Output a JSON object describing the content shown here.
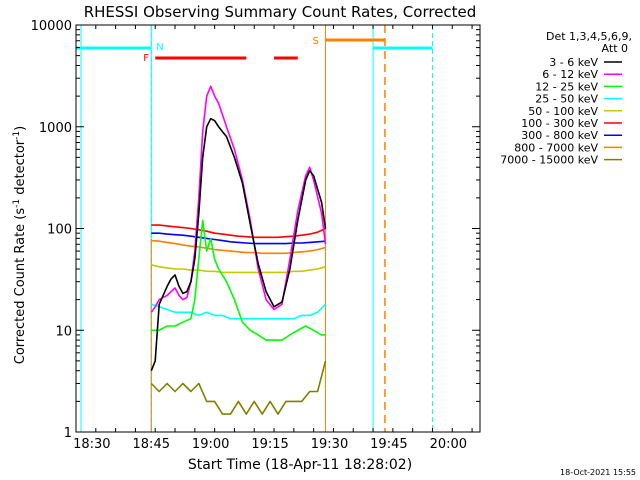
{
  "chart_data": {
    "type": "line",
    "title": "RHESSI Observing Summary Count Rates, Corrected",
    "xlabel": "Start Time (18-Apr-11 18:28:02)",
    "ylabel": "Corrected Count Rate (s⁻¹ detector⁻¹)",
    "ylabel_main": "Corrected Count Rate (s",
    "ylabel_sup1": "-1",
    "ylabel_mid": " detector",
    "ylabel_sup2": "-1",
    "ylabel_end": ")",
    "yscale": "log",
    "xlim": [
      "18:26",
      "20:08"
    ],
    "ylim": [
      1,
      10000
    ],
    "x_ticks": [
      "18:30",
      "18:45",
      "19:00",
      "19:15",
      "19:30",
      "19:45",
      "20:00"
    ],
    "y_ticks": [
      "1",
      "10",
      "100",
      "1000",
      "10000"
    ],
    "legend_header": [
      "Det 1,3,4,5,6,9,",
      "Att 0"
    ],
    "legend_position": "right",
    "timestamp": "18-Oct-2021 15:55",
    "flags": [
      {
        "label": "N",
        "color": "#00ffff",
        "kind": "night",
        "x": "18:45"
      },
      {
        "label": "F",
        "color": "#ff0000",
        "kind": "flare"
      },
      {
        "label": "S",
        "color": "#ff7f00",
        "kind": "saa"
      }
    ],
    "series": [
      {
        "name": "3 - 6 keV",
        "color": "#000000",
        "points": [
          [
            "18:45",
            4
          ],
          [
            "18:46",
            5
          ],
          [
            "18:47",
            18
          ],
          [
            "18:49",
            27
          ],
          [
            "18:50",
            32
          ],
          [
            "18:51",
            35
          ],
          [
            "18:52",
            27
          ],
          [
            "18:53",
            23
          ],
          [
            "18:54",
            24
          ],
          [
            "18:55",
            30
          ],
          [
            "18:56",
            50
          ],
          [
            "18:57",
            140
          ],
          [
            "18:58",
            500
          ],
          [
            "18:59",
            1000
          ],
          [
            "19:00",
            1200
          ],
          [
            "19:01",
            1150
          ],
          [
            "19:02",
            1000
          ],
          [
            "19:04",
            800
          ],
          [
            "19:06",
            500
          ],
          [
            "19:08",
            280
          ],
          [
            "19:10",
            110
          ],
          [
            "19:12",
            45
          ],
          [
            "19:14",
            24
          ],
          [
            "19:16",
            17
          ],
          [
            "19:18",
            19
          ],
          [
            "19:20",
            40
          ],
          [
            "19:22",
            120
          ],
          [
            "19:24",
            300
          ],
          [
            "19:25",
            370
          ],
          [
            "19:26",
            330
          ],
          [
            "19:28",
            180
          ],
          [
            "19:29",
            100
          ]
        ]
      },
      {
        "name": "6 - 12 keV",
        "color": "#ff00ff",
        "points": [
          [
            "18:45",
            15
          ],
          [
            "18:46",
            17
          ],
          [
            "18:47",
            20
          ],
          [
            "18:49",
            22
          ],
          [
            "18:50",
            24
          ],
          [
            "18:51",
            26
          ],
          [
            "18:52",
            22
          ],
          [
            "18:53",
            20
          ],
          [
            "18:54",
            21
          ],
          [
            "18:55",
            30
          ],
          [
            "18:56",
            60
          ],
          [
            "18:57",
            200
          ],
          [
            "18:58",
            900
          ],
          [
            "18:59",
            2000
          ],
          [
            "19:00",
            2500
          ],
          [
            "19:01",
            2000
          ],
          [
            "19:02",
            1700
          ],
          [
            "19:04",
            1000
          ],
          [
            "19:06",
            600
          ],
          [
            "19:08",
            300
          ],
          [
            "19:10",
            120
          ],
          [
            "19:12",
            40
          ],
          [
            "19:14",
            20
          ],
          [
            "19:16",
            16
          ],
          [
            "19:18",
            18
          ],
          [
            "19:20",
            50
          ],
          [
            "19:22",
            150
          ],
          [
            "19:24",
            330
          ],
          [
            "19:25",
            400
          ],
          [
            "19:26",
            300
          ],
          [
            "19:28",
            140
          ],
          [
            "19:29",
            70
          ]
        ]
      },
      {
        "name": "12 - 25 keV",
        "color": "#00ff00",
        "points": [
          [
            "18:45",
            10
          ],
          [
            "18:47",
            10
          ],
          [
            "18:49",
            11
          ],
          [
            "18:51",
            11
          ],
          [
            "18:53",
            12
          ],
          [
            "18:55",
            13
          ],
          [
            "18:56",
            20
          ],
          [
            "18:57",
            50
          ],
          [
            "18:58",
            120
          ],
          [
            "18:59",
            60
          ],
          [
            "19:00",
            80
          ],
          [
            "19:01",
            50
          ],
          [
            "19:02",
            40
          ],
          [
            "19:04",
            30
          ],
          [
            "19:06",
            20
          ],
          [
            "19:08",
            12
          ],
          [
            "19:10",
            10
          ],
          [
            "19:12",
            9
          ],
          [
            "19:14",
            8
          ],
          [
            "19:16",
            8
          ],
          [
            "19:18",
            8
          ],
          [
            "19:20",
            9
          ],
          [
            "19:22",
            10
          ],
          [
            "19:24",
            11
          ],
          [
            "19:26",
            10
          ],
          [
            "19:28",
            9
          ],
          [
            "19:29",
            9
          ]
        ]
      },
      {
        "name": "25 - 50 keV",
        "color": "#00ffff",
        "points": [
          [
            "18:45",
            18
          ],
          [
            "18:47",
            17
          ],
          [
            "18:49",
            16
          ],
          [
            "18:51",
            15
          ],
          [
            "18:53",
            15
          ],
          [
            "18:55",
            15
          ],
          [
            "18:57",
            14
          ],
          [
            "18:59",
            15
          ],
          [
            "19:01",
            14
          ],
          [
            "19:03",
            14
          ],
          [
            "19:05",
            13
          ],
          [
            "19:07",
            13
          ],
          [
            "19:09",
            13
          ],
          [
            "19:11",
            13
          ],
          [
            "19:13",
            13
          ],
          [
            "19:15",
            13
          ],
          [
            "19:17",
            13
          ],
          [
            "19:19",
            13
          ],
          [
            "19:21",
            13
          ],
          [
            "19:23",
            14
          ],
          [
            "19:25",
            14
          ],
          [
            "19:27",
            15
          ],
          [
            "19:29",
            18
          ]
        ]
      },
      {
        "name": "50 - 100 keV",
        "color": "#c8c800",
        "points": [
          [
            "18:45",
            44
          ],
          [
            "18:47",
            42
          ],
          [
            "18:49",
            41
          ],
          [
            "18:51",
            40
          ],
          [
            "18:53",
            40
          ],
          [
            "18:55",
            39
          ],
          [
            "18:57",
            39
          ],
          [
            "18:59",
            38
          ],
          [
            "19:01",
            38
          ],
          [
            "19:03",
            37
          ],
          [
            "19:05",
            37
          ],
          [
            "19:07",
            37
          ],
          [
            "19:09",
            37
          ],
          [
            "19:11",
            37
          ],
          [
            "19:13",
            37
          ],
          [
            "19:15",
            37
          ],
          [
            "19:17",
            37
          ],
          [
            "19:19",
            37
          ],
          [
            "19:21",
            38
          ],
          [
            "19:23",
            38
          ],
          [
            "19:25",
            39
          ],
          [
            "19:27",
            40
          ],
          [
            "19:29",
            42
          ]
        ]
      },
      {
        "name": "100 - 300 keV",
        "color": "#ff0000",
        "points": [
          [
            "18:45",
            108
          ],
          [
            "18:47",
            108
          ],
          [
            "18:49",
            106
          ],
          [
            "18:51",
            104
          ],
          [
            "18:53",
            102
          ],
          [
            "18:55",
            100
          ],
          [
            "18:57",
            97
          ],
          [
            "18:59",
            94
          ],
          [
            "19:01",
            90
          ],
          [
            "19:03",
            88
          ],
          [
            "19:05",
            86
          ],
          [
            "19:07",
            84
          ],
          [
            "19:09",
            83
          ],
          [
            "19:11",
            82
          ],
          [
            "19:13",
            82
          ],
          [
            "19:15",
            82
          ],
          [
            "19:17",
            82
          ],
          [
            "19:19",
            83
          ],
          [
            "19:21",
            84
          ],
          [
            "19:23",
            86
          ],
          [
            "19:25",
            88
          ],
          [
            "19:27",
            92
          ],
          [
            "19:29",
            100
          ]
        ]
      },
      {
        "name": "300 - 800 keV",
        "color": "#0000ff",
        "points": [
          [
            "18:45",
            90
          ],
          [
            "18:47",
            90
          ],
          [
            "18:49",
            88
          ],
          [
            "18:51",
            87
          ],
          [
            "18:53",
            86
          ],
          [
            "18:55",
            84
          ],
          [
            "18:57",
            82
          ],
          [
            "18:59",
            80
          ],
          [
            "19:01",
            78
          ],
          [
            "19:03",
            76
          ],
          [
            "19:05",
            74
          ],
          [
            "19:07",
            73
          ],
          [
            "19:09",
            72
          ],
          [
            "19:11",
            71
          ],
          [
            "19:13",
            71
          ],
          [
            "19:15",
            71
          ],
          [
            "19:17",
            71
          ],
          [
            "19:19",
            71
          ],
          [
            "19:21",
            72
          ],
          [
            "19:23",
            72
          ],
          [
            "19:25",
            73
          ],
          [
            "19:27",
            74
          ],
          [
            "19:29",
            75
          ]
        ]
      },
      {
        "name": "800 - 7000 keV",
        "color": "#ff7f00",
        "points": [
          [
            "18:45",
            76
          ],
          [
            "18:47",
            75
          ],
          [
            "18:49",
            73
          ],
          [
            "18:51",
            71
          ],
          [
            "18:53",
            69
          ],
          [
            "18:55",
            67
          ],
          [
            "18:57",
            66
          ],
          [
            "18:59",
            64
          ],
          [
            "19:01",
            62
          ],
          [
            "19:03",
            61
          ],
          [
            "19:05",
            60
          ],
          [
            "19:07",
            59
          ],
          [
            "19:09",
            58
          ],
          [
            "19:11",
            58
          ],
          [
            "19:13",
            57
          ],
          [
            "19:15",
            57
          ],
          [
            "19:17",
            57
          ],
          [
            "19:19",
            57
          ],
          [
            "19:21",
            58
          ],
          [
            "19:23",
            59
          ],
          [
            "19:25",
            60
          ],
          [
            "19:27",
            62
          ],
          [
            "19:29",
            65
          ]
        ]
      },
      {
        "name": "7000 - 15000 keV",
        "color": "#808000",
        "points": [
          [
            "18:45",
            3
          ],
          [
            "18:47",
            2.5
          ],
          [
            "18:49",
            3
          ],
          [
            "18:51",
            2.5
          ],
          [
            "18:53",
            3
          ],
          [
            "18:55",
            2.5
          ],
          [
            "18:57",
            3
          ],
          [
            "18:59",
            2
          ],
          [
            "19:01",
            2
          ],
          [
            "19:03",
            1.5
          ],
          [
            "19:05",
            1.5
          ],
          [
            "19:07",
            2
          ],
          [
            "19:09",
            1.5
          ],
          [
            "19:11",
            2
          ],
          [
            "19:13",
            1.5
          ],
          [
            "19:15",
            2
          ],
          [
            "19:17",
            1.5
          ],
          [
            "19:19",
            2
          ],
          [
            "19:21",
            2
          ],
          [
            "19:23",
            2
          ],
          [
            "19:25",
            2.5
          ],
          [
            "19:27",
            2.5
          ],
          [
            "19:29",
            5
          ]
        ]
      }
    ]
  }
}
